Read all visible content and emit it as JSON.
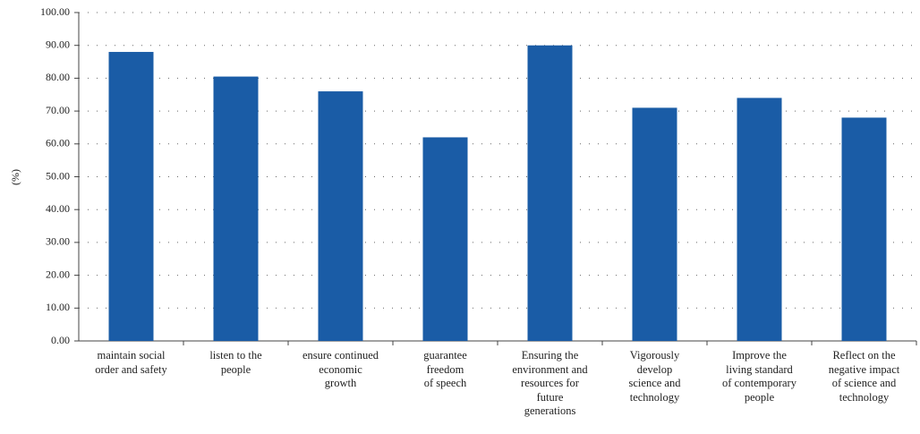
{
  "chart_data": {
    "type": "bar",
    "y_label": "(%)",
    "categories": [
      "maintain social\norder and safety",
      "listen to the\npeople",
      "ensure continued\neconomic\ngrowth",
      "guarantee\nfreedom\nof speech",
      "Ensuring the\nenvironment and\nresources for\nfuture\ngenerations",
      "Vigorously\ndevelop\nscience and\ntechnology",
      "Improve the\nliving standard\nof contemporary\npeople",
      "Reflect on the\nnegative impact\nof science and\ntechnology"
    ],
    "values": [
      88,
      80.5,
      76,
      62,
      90,
      71,
      74,
      68
    ],
    "color": "#1a5ca6",
    "ylim": [
      0,
      100
    ],
    "yticks": [
      {
        "value": 0,
        "label": "0.00"
      },
      {
        "value": 10,
        "label": "10.00"
      },
      {
        "value": 20,
        "label": "20.00"
      },
      {
        "value": 30,
        "label": "30.00"
      },
      {
        "value": 40,
        "label": "40.00"
      },
      {
        "value": 50,
        "label": "50.00"
      },
      {
        "value": 60,
        "label": "60.00"
      },
      {
        "value": 70,
        "label": "70.00"
      },
      {
        "value": 80,
        "label": "80.00"
      },
      {
        "value": 90,
        "label": "90.00"
      },
      {
        "value": 100,
        "label": "100.00"
      }
    ],
    "grid": true
  }
}
